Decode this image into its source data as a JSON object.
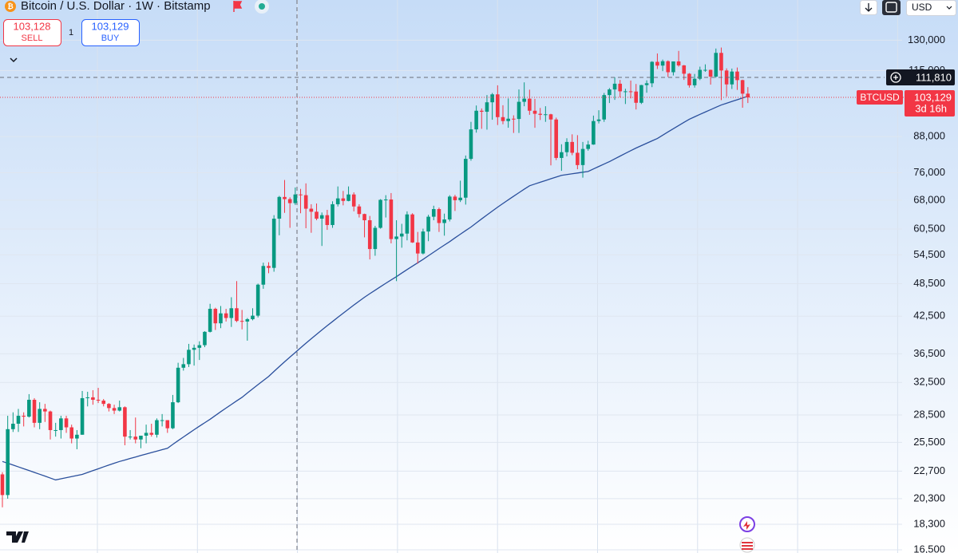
{
  "header": {
    "title": "Bitcoin / U.S. Dollar · 1W · Bitstamp",
    "sell_price": "103,128",
    "sell_label": "SELL",
    "quantity": "1",
    "buy_price": "103,129",
    "buy_label": "BUY",
    "currency": "USD"
  },
  "chart_data": {
    "type": "candlestick",
    "log_scale": true,
    "grid": true,
    "up_color": "#089981",
    "down_color": "#f23645",
    "ylim": [
      16290,
      153000
    ],
    "yticks": [
      {
        "value": 130000,
        "label": "130,000"
      },
      {
        "value": 115000,
        "label": "115,000"
      },
      {
        "value": 88000,
        "label": "88,000"
      },
      {
        "value": 76000,
        "label": "76,000"
      },
      {
        "value": 68000,
        "label": "68,000"
      },
      {
        "value": 60500,
        "label": "60,500"
      },
      {
        "value": 54500,
        "label": "54,500"
      },
      {
        "value": 48500,
        "label": "48,500"
      },
      {
        "value": 42500,
        "label": "42,500"
      },
      {
        "value": 36500,
        "label": "36,500"
      },
      {
        "value": 32500,
        "label": "32,500"
      },
      {
        "value": 28500,
        "label": "28,500"
      },
      {
        "value": 25500,
        "label": "25,500"
      },
      {
        "value": 22700,
        "label": "22,700"
      },
      {
        "value": 20300,
        "label": "20,300"
      },
      {
        "value": 18300,
        "label": "18,300"
      },
      {
        "value": 16500,
        "label": "16,500"
      }
    ],
    "candles": [
      [
        22400,
        22600,
        19600,
        20600
      ],
      [
        20600,
        28400,
        20300,
        26900
      ],
      [
        26900,
        28800,
        26600,
        27500
      ],
      [
        27500,
        29200,
        26600,
        28400
      ],
      [
        28400,
        28800,
        27200,
        28300
      ],
      [
        28300,
        31000,
        28200,
        30300
      ],
      [
        30300,
        30500,
        27100,
        27600
      ],
      [
        27600,
        30000,
        26900,
        29200
      ],
      [
        29200,
        29800,
        27700,
        28900
      ],
      [
        28900,
        29000,
        25800,
        26800
      ],
      [
        26800,
        27600,
        26100,
        26800
      ],
      [
        26800,
        28400,
        25900,
        28100
      ],
      [
        28100,
        28400,
        26500,
        27100
      ],
      [
        27100,
        27400,
        25400,
        25900
      ],
      [
        25900,
        26800,
        24800,
        26300
      ],
      [
        26300,
        31400,
        26300,
        30500
      ],
      [
        30500,
        31300,
        29500,
        30600
      ],
      [
        30600,
        31500,
        29700,
        30300
      ],
      [
        30300,
        31800,
        29900,
        30200
      ],
      [
        30200,
        30400,
        29500,
        29800
      ],
      [
        29800,
        29900,
        28900,
        29300
      ],
      [
        29300,
        29700,
        28600,
        29000
      ],
      [
        29000,
        30200,
        28900,
        29400
      ],
      [
        29400,
        29500,
        25200,
        26100
      ],
      [
        26100,
        26800,
        25800,
        26100
      ],
      [
        26100,
        28200,
        25400,
        25800
      ],
      [
        25800,
        26100,
        24900,
        26200
      ],
      [
        26200,
        27400,
        25400,
        26500
      ],
      [
        26500,
        27500,
        26100,
        26300
      ],
      [
        26300,
        28100,
        26000,
        27900
      ],
      [
        27900,
        28600,
        27200,
        27900
      ],
      [
        27900,
        27900,
        26500,
        27000
      ],
      [
        27000,
        30900,
        26900,
        30000
      ],
      [
        30000,
        35200,
        29900,
        34500
      ],
      [
        34500,
        35900,
        34100,
        35000
      ],
      [
        35000,
        38000,
        34600,
        37100
      ],
      [
        37100,
        37900,
        34800,
        37400
      ],
      [
        37400,
        38400,
        35600,
        37800
      ],
      [
        37800,
        40000,
        37500,
        39900
      ],
      [
        39900,
        44700,
        39800,
        43800
      ],
      [
        43800,
        44000,
        40200,
        41300
      ],
      [
        41300,
        44300,
        40500,
        43000
      ],
      [
        43000,
        43800,
        41600,
        42200
      ],
      [
        42200,
        45900,
        40700,
        43900
      ],
      [
        43900,
        49000,
        41500,
        41700
      ],
      [
        41700,
        43600,
        40300,
        41600
      ],
      [
        41600,
        42200,
        38500,
        42000
      ],
      [
        42000,
        43900,
        41800,
        42600
      ],
      [
        42600,
        48500,
        42300,
        48300
      ],
      [
        48300,
        52800,
        47500,
        52100
      ],
      [
        52100,
        52900,
        50600,
        51700
      ],
      [
        51700,
        64000,
        50900,
        63100
      ],
      [
        63100,
        69200,
        59000,
        68900
      ],
      [
        68900,
        73800,
        64600,
        68300
      ],
      [
        68300,
        68800,
        60800,
        67200
      ],
      [
        67200,
        71600,
        66700,
        69600
      ],
      [
        69600,
        71200,
        64500,
        69400
      ],
      [
        69400,
        72800,
        60700,
        65700
      ],
      [
        65700,
        66900,
        59600,
        64900
      ],
      [
        64900,
        67100,
        62700,
        63100
      ],
      [
        63100,
        64700,
        56500,
        64000
      ],
      [
        64000,
        65400,
        60300,
        61500
      ],
      [
        61500,
        67700,
        60800,
        66900
      ],
      [
        66900,
        71900,
        66300,
        68500
      ],
      [
        68500,
        70600,
        66600,
        67800
      ],
      [
        67800,
        71900,
        67700,
        69600
      ],
      [
        69600,
        70200,
        65000,
        66300
      ],
      [
        66300,
        66900,
        63400,
        64300
      ],
      [
        64300,
        64400,
        58500,
        62700
      ],
      [
        62700,
        63800,
        53500,
        55800
      ],
      [
        55800,
        61300,
        54300,
        60800
      ],
      [
        60800,
        68300,
        60600,
        68100
      ],
      [
        68100,
        69400,
        63400,
        68200
      ],
      [
        68200,
        70000,
        57100,
        58100
      ],
      [
        58100,
        62700,
        49000,
        58700
      ],
      [
        58700,
        61800,
        56100,
        59400
      ],
      [
        59400,
        65000,
        57800,
        64200
      ],
      [
        64200,
        64500,
        57200,
        57300
      ],
      [
        57300,
        59800,
        52600,
        54800
      ],
      [
        54800,
        60600,
        54600,
        59900
      ],
      [
        59900,
        64100,
        57600,
        63600
      ],
      [
        63600,
        66500,
        62700,
        65600
      ],
      [
        65600,
        66000,
        59800,
        62000
      ],
      [
        62000,
        64400,
        58900,
        62900
      ],
      [
        62900,
        69400,
        62400,
        69000
      ],
      [
        69000,
        69500,
        65100,
        68000
      ],
      [
        68000,
        73600,
        67500,
        68700
      ],
      [
        68700,
        81500,
        66800,
        80400
      ],
      [
        80400,
        93400,
        79800,
        90600
      ],
      [
        90600,
        99800,
        89400,
        97700
      ],
      [
        97700,
        98600,
        90800,
        97300
      ],
      [
        97300,
        104100,
        90500,
        101100
      ],
      [
        101100,
        105000,
        94200,
        104400
      ],
      [
        104400,
        108300,
        92200,
        95200
      ],
      [
        95200,
        99900,
        92500,
        93700
      ],
      [
        93700,
        102700,
        91200,
        94600
      ],
      [
        94600,
        95900,
        89300,
        94500
      ],
      [
        94500,
        106500,
        89300,
        101300
      ],
      [
        101300,
        109600,
        99500,
        102600
      ],
      [
        102600,
        106400,
        96100,
        97700
      ],
      [
        97700,
        102500,
        91200,
        96500
      ],
      [
        96500,
        98800,
        94100,
        96100
      ],
      [
        96100,
        99500,
        93400,
        96300
      ],
      [
        96300,
        96500,
        78300,
        94300
      ],
      [
        94300,
        95000,
        80000,
        80700
      ],
      [
        80700,
        85300,
        76600,
        82600
      ],
      [
        82600,
        87400,
        81200,
        86100
      ],
      [
        86100,
        88800,
        81600,
        82400
      ],
      [
        82400,
        88500,
        77100,
        78400
      ],
      [
        78400,
        86100,
        74500,
        83700
      ],
      [
        83700,
        86500,
        83100,
        85200
      ],
      [
        85200,
        95800,
        85100,
        93700
      ],
      [
        93700,
        97900,
        92800,
        94300
      ],
      [
        94300,
        105000,
        93400,
        104100
      ],
      [
        104100,
        107100,
        100800,
        106500
      ],
      [
        106500,
        111900,
        102100,
        109000
      ],
      [
        109000,
        110700,
        103100,
        105700
      ],
      [
        105700,
        106800,
        100400,
        105700
      ],
      [
        105700,
        110400,
        102700,
        105600
      ],
      [
        105600,
        108900,
        98200,
        100900
      ],
      [
        100900,
        108500,
        100400,
        108400
      ],
      [
        108400,
        110500,
        105100,
        109200
      ],
      [
        109200,
        119400,
        107500,
        119100
      ],
      [
        119100,
        123200,
        115700,
        117300
      ],
      [
        117300,
        120200,
        114700,
        119400
      ],
      [
        119400,
        119800,
        112000,
        114200
      ],
      [
        114200,
        119300,
        112700,
        119300
      ],
      [
        119300,
        124500,
        116800,
        117400
      ],
      [
        117400,
        117600,
        110700,
        113500
      ],
      [
        113500,
        113800,
        107300,
        108300
      ],
      [
        108300,
        113400,
        107300,
        111200
      ],
      [
        111200,
        116800,
        110600,
        115300
      ],
      [
        115300,
        117900,
        114400,
        115300
      ],
      [
        115300,
        115400,
        108600,
        112200
      ],
      [
        112200,
        125700,
        111700,
        123500
      ],
      [
        123500,
        126200,
        102000,
        115000
      ],
      [
        115000,
        116000,
        103500,
        108700
      ],
      [
        108700,
        115900,
        106700,
        114500
      ],
      [
        114500,
        116400,
        106300,
        110600
      ],
      [
        110600,
        110800,
        98900,
        104700
      ],
      [
        104700,
        107500,
        100800,
        103129
      ]
    ],
    "moving_average": {
      "color": "#2a4f9c",
      "values": [
        23600,
        23430,
        23260,
        23090,
        22920,
        22750,
        22580,
        22410,
        22240,
        22070,
        21900,
        22000,
        22100,
        22200,
        22300,
        22400,
        22570,
        22740,
        22910,
        23090,
        23260,
        23430,
        23600,
        23740,
        23890,
        24030,
        24180,
        24320,
        24470,
        24610,
        24760,
        24900,
        25290,
        25680,
        26060,
        26450,
        26840,
        27230,
        27610,
        28000,
        28430,
        28870,
        29300,
        29730,
        30170,
        30600,
        31140,
        31680,
        32220,
        32760,
        33300,
        33980,
        34660,
        35340,
        36020,
        36700,
        37400,
        38100,
        38800,
        39500,
        40200,
        40900,
        41600,
        42320,
        43030,
        43750,
        44470,
        45180,
        45900,
        46570,
        47230,
        47900,
        48570,
        49230,
        49900,
        50620,
        51340,
        52060,
        52780,
        53500,
        54300,
        55100,
        55900,
        56700,
        57500,
        58380,
        59250,
        60130,
        61000,
        62020,
        63040,
        64060,
        65080,
        66100,
        67100,
        68100,
        69100,
        70100,
        71100,
        72100,
        72620,
        73130,
        73650,
        74170,
        74680,
        75200,
        75440,
        75680,
        75920,
        76160,
        76400,
        77180,
        77950,
        78730,
        79500,
        80400,
        81300,
        82200,
        83100,
        84000,
        84830,
        85650,
        86480,
        87300,
        88480,
        89670,
        90850,
        92030,
        93220,
        94400,
        95330,
        96270,
        97200,
        98130,
        99070,
        100000,
        100720,
        101440,
        102160,
        102880,
        103600
      ]
    },
    "crosshair": {
      "value": 111810,
      "label": "111,810"
    },
    "last_price": {
      "value": 103129,
      "label": "103,129",
      "symbol": "BTCUSD",
      "countdown": "3d 16h"
    }
  }
}
